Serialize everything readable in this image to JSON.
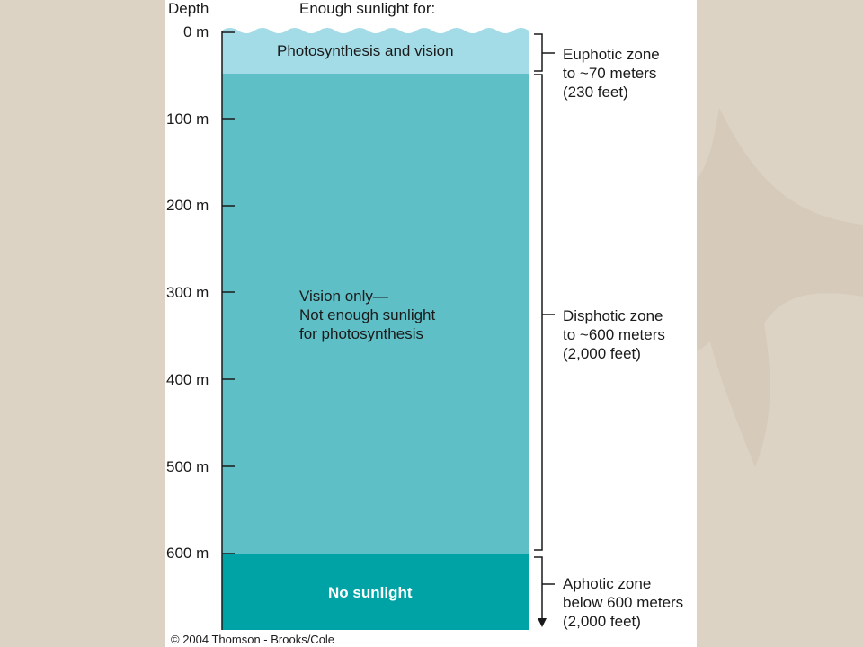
{
  "header": {
    "depth_label": "Depth",
    "sunlight_label": "Enough sunlight for:"
  },
  "depth_ticks": [
    {
      "label": "0 m"
    },
    {
      "label": "100 m"
    },
    {
      "label": "200 m"
    },
    {
      "label": "300 m"
    },
    {
      "label": "400 m"
    },
    {
      "label": "500 m"
    },
    {
      "label": "600 m"
    }
  ],
  "bands": {
    "euphotic": {
      "text": "Photosynthesis and vision",
      "color": "#a3dbe6"
    },
    "disphotic": {
      "line1": "Vision only—",
      "line2": "Not enough sunlight",
      "line3": "for photosynthesis",
      "color": "#5fbfc6"
    },
    "aphotic": {
      "text": "No sunlight",
      "color": "#00a3a5"
    }
  },
  "zones": {
    "euphotic": {
      "line1": "Euphotic zone",
      "line2": "to ~70 meters",
      "line3": "(230 feet)"
    },
    "disphotic": {
      "line1": "Disphotic zone",
      "line2": "to ~600 meters",
      "line3": "(2,000 feet)"
    },
    "aphotic": {
      "line1": "Aphotic zone",
      "line2": "below 600 meters",
      "line3": "(2,000 feet)"
    }
  },
  "footer": {
    "copyright": "© 2004 Thomson - Brooks/Cole"
  }
}
